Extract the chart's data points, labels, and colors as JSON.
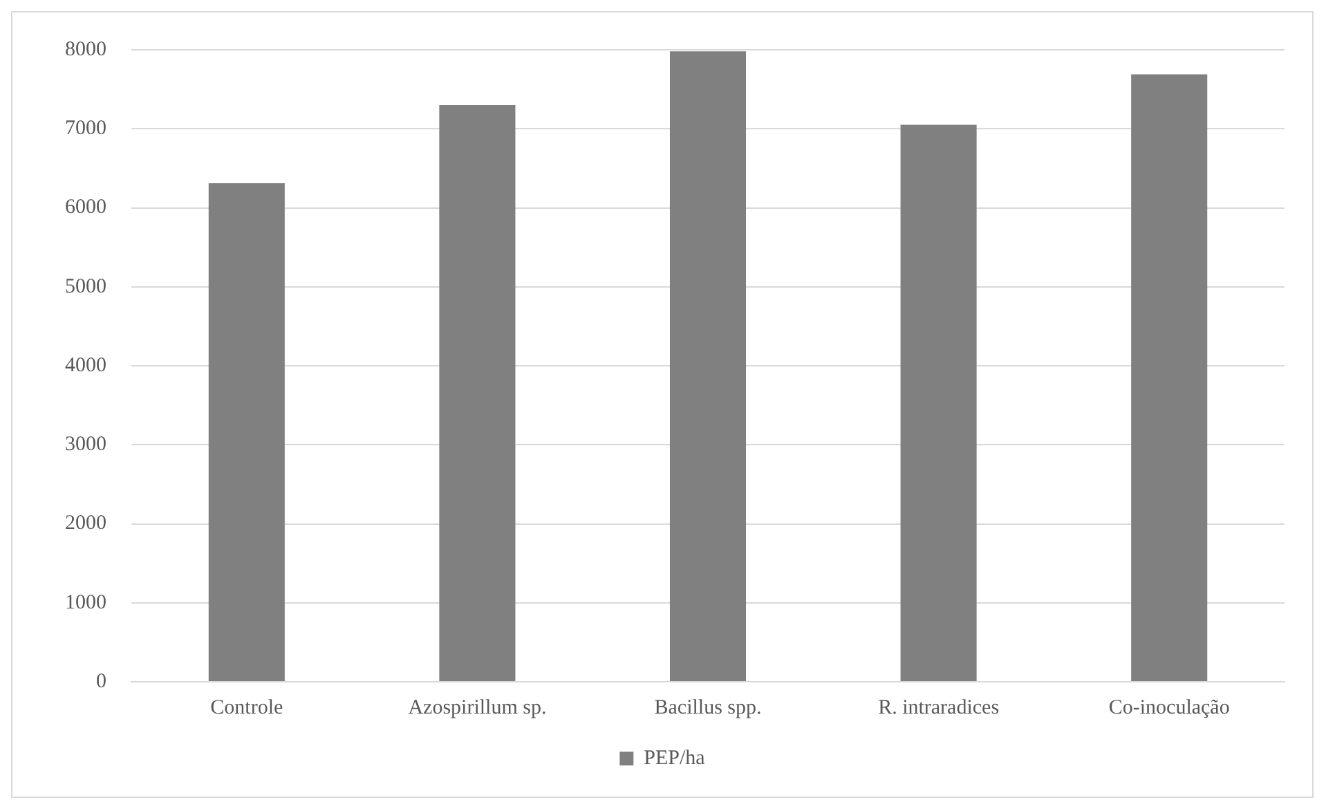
{
  "chart_data": {
    "type": "bar",
    "categories": [
      "Controle",
      "Azospirillum sp.",
      "Bacillus spp.",
      "R. intraradices",
      "Co-inoculação"
    ],
    "series": [
      {
        "name": "PEP/ha",
        "color": "#808080",
        "values": [
          6310,
          7300,
          7980,
          7050,
          7690
        ]
      }
    ],
    "ylim": [
      0,
      8000
    ],
    "yticks": [
      0,
      1000,
      2000,
      3000,
      4000,
      5000,
      6000,
      7000,
      8000
    ],
    "grid": "y",
    "legend": "bottom"
  }
}
